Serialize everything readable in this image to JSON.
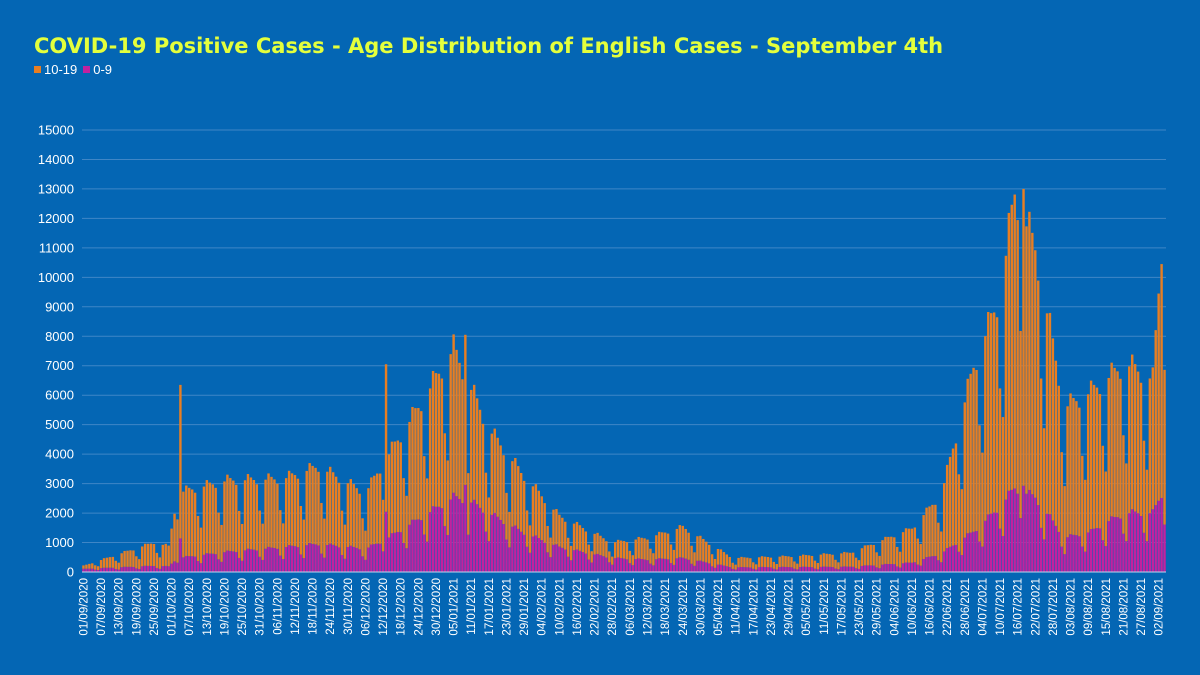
{
  "title": "COVID-19 Positive Cases - Age Distribution of English Cases - September 4th",
  "legend": [
    {
      "name": "10-19",
      "color": "#e87e22"
    },
    {
      "name": "0-9",
      "color": "#c2219f"
    }
  ],
  "chart_data": {
    "type": "bar",
    "stacked": true,
    "title": "COVID-19 Positive Cases - Age Distribution of English Cases - September 4th",
    "xlabel": "",
    "ylabel": "",
    "ylim": [
      0,
      15000
    ],
    "yticks": [
      0,
      1000,
      2000,
      3000,
      4000,
      5000,
      6000,
      7000,
      8000,
      9000,
      10000,
      11000,
      12000,
      13000,
      14000,
      15000
    ],
    "grid": true,
    "legend_position": "top-left",
    "x_start": "01/09/2020",
    "x_end": "04/09/2021",
    "xtick_labels": [
      "01/09/2020",
      "07/09/2020",
      "13/09/2020",
      "19/09/2020",
      "25/09/2020",
      "01/10/2020",
      "07/10/2020",
      "13/10/2020",
      "19/10/2020",
      "25/10/2020",
      "31/10/2020",
      "06/11/2020",
      "12/11/2020",
      "18/11/2020",
      "24/11/2020",
      "30/11/2020",
      "06/12/2020",
      "12/12/2020",
      "18/12/2020",
      "24/12/2020",
      "30/12/2020",
      "05/01/2021",
      "11/01/2021",
      "17/01/2021",
      "23/01/2021",
      "29/01/2021",
      "04/02/2021",
      "10/02/2021",
      "16/02/2021",
      "22/02/2021",
      "28/02/2021",
      "06/03/2021",
      "12/03/2021",
      "18/03/2021",
      "24/03/2021",
      "30/03/2021",
      "05/04/2021",
      "11/04/2021",
      "17/04/2021",
      "23/04/2021",
      "29/04/2021",
      "05/05/2021",
      "11/05/2021",
      "17/05/2021",
      "23/05/2021",
      "29/05/2021",
      "04/06/2021",
      "10/06/2021",
      "16/06/2021",
      "22/06/2021",
      "28/06/2021",
      "04/07/2021",
      "10/07/2021",
      "16/07/2021",
      "22/07/2021",
      "28/07/2021",
      "03/08/2021",
      "09/08/2021",
      "15/08/2021",
      "21/08/2021",
      "27/08/2021",
      "02/09/2021"
    ],
    "series": [
      {
        "name": "0-9",
        "color": "#c2219f",
        "anchors": [
          [
            "01/09/2020",
            100
          ],
          [
            "25/09/2020",
            200
          ],
          [
            "30/09/2020",
            180
          ],
          [
            "03/10/2020",
            450
          ],
          [
            "20/10/2020",
            650
          ],
          [
            "08/11/2020",
            800
          ],
          [
            "20/11/2020",
            900
          ],
          [
            "06/12/2020",
            750
          ],
          [
            "12/12/2020",
            1000
          ],
          [
            "24/12/2020",
            1700
          ],
          [
            "05/01/2021",
            2400
          ],
          [
            "10/01/2021",
            2300
          ],
          [
            "17/01/2021",
            1900
          ],
          [
            "28/01/2021",
            1300
          ],
          [
            "10/02/2021",
            800
          ],
          [
            "28/02/2021",
            450
          ],
          [
            "12/03/2021",
            400
          ],
          [
            "24/03/2021",
            450
          ],
          [
            "10/04/2021",
            150
          ],
          [
            "01/05/2021",
            160
          ],
          [
            "20/05/2021",
            170
          ],
          [
            "10/06/2021",
            300
          ],
          [
            "20/06/2021",
            600
          ],
          [
            "01/07/2021",
            1300
          ],
          [
            "10/07/2021",
            2100
          ],
          [
            "15/07/2021",
            2700
          ],
          [
            "22/07/2021",
            2400
          ],
          [
            "01/08/2021",
            1100
          ],
          [
            "10/08/2021",
            1300
          ],
          [
            "15/08/2021",
            1600
          ],
          [
            "22/08/2021",
            1900
          ],
          [
            "31/08/2021",
            1900
          ],
          [
            "03/09/2021",
            2500
          ],
          [
            "04/09/2021",
            2300
          ]
        ]
      },
      {
        "name": "10-19",
        "color": "#e87e22",
        "anchors": [
          [
            "01/09/2020",
            100
          ],
          [
            "25/09/2020",
            750
          ],
          [
            "30/09/2020",
            650
          ],
          [
            "03/10/2020",
            2100
          ],
          [
            "20/10/2020",
            2300
          ],
          [
            "08/11/2020",
            2200
          ],
          [
            "20/11/2020",
            2500
          ],
          [
            "06/12/2020",
            1800
          ],
          [
            "12/12/2020",
            2500
          ],
          [
            "24/12/2020",
            3600
          ],
          [
            "05/01/2021",
            4800
          ],
          [
            "10/01/2021",
            3800
          ],
          [
            "17/01/2021",
            2700
          ],
          [
            "28/01/2021",
            1900
          ],
          [
            "10/02/2021",
            1000
          ],
          [
            "28/02/2021",
            500
          ],
          [
            "12/03/2021",
            700
          ],
          [
            "24/03/2021",
            1000
          ],
          [
            "10/04/2021",
            300
          ],
          [
            "01/05/2021",
            350
          ],
          [
            "20/05/2021",
            450
          ],
          [
            "10/06/2021",
            1100
          ],
          [
            "20/06/2021",
            1900
          ],
          [
            "01/07/2021",
            5300
          ],
          [
            "10/07/2021",
            6800
          ],
          [
            "15/07/2021",
            9500
          ],
          [
            "22/07/2021",
            8000
          ],
          [
            "01/08/2021",
            4200
          ],
          [
            "10/08/2021",
            4500
          ],
          [
            "15/08/2021",
            4600
          ],
          [
            "22/08/2021",
            4800
          ],
          [
            "31/08/2021",
            4300
          ],
          [
            "03/09/2021",
            7900
          ],
          [
            "04/09/2021",
            7500
          ]
        ]
      }
    ],
    "peaks": [
      {
        "date": "04/10/2020",
        "total": 6350
      },
      {
        "date": "13/12/2020",
        "total": 7050
      },
      {
        "date": "09/01/2021",
        "total": 8050
      },
      {
        "date": "18/07/2021",
        "total": 13000
      },
      {
        "date": "03/09/2021",
        "total": 10450
      }
    ]
  }
}
